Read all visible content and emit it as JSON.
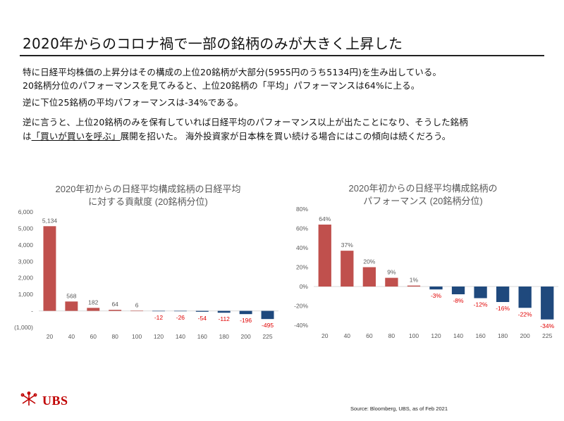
{
  "slide": {
    "title": "2020年からのコロナ禍で一部の銘柄のみが大きく上昇した",
    "lines": [
      {
        "a": "特に日経平均株価の上昇分はその構成の上位20銘柄が大部分(5955円のうち5134円)を生み出している。"
      },
      {
        "a": "20銘柄分位のパフォーマンスを見てみると、上位20銘柄の「平均」パフォーマンスは64%に上る。"
      },
      {
        "a": "逆に下位25銘柄の平均パフォーマンスは-34%である。"
      },
      {
        "a": "逆に言うと、上位20銘柄のみを保有していれば日経平均のパフォーマンス以上が出たことになり、そうした銘柄"
      },
      {
        "a": "は",
        "u": "「買いが買いを呼ぶ」",
        "b": "展開を招いた。 海外投資家が日本株を買い続ける場合にはこの傾向は続くだろう。"
      }
    ],
    "source": "Source: Bloomberg, UBS, as of Feb 2021",
    "logo_text": "UBS",
    "logo_icon": "ubs-keys-icon"
  },
  "colors": {
    "positive": "#c0504d",
    "negative": "#1f497d",
    "neg_label": "#e00000",
    "axis_text": "#595959",
    "grid": "#d9d9d9"
  },
  "chart_data": [
    {
      "type": "bar",
      "title": [
        "2020年初からの日経平均構成銘柄の日経平均",
        "に対する貢献度 (20銘柄分位)"
      ],
      "categories": [
        "20",
        "40",
        "60",
        "80",
        "100",
        "120",
        "140",
        "160",
        "180",
        "200",
        "225"
      ],
      "values": [
        5134,
        568,
        182,
        64,
        6,
        -12,
        -26,
        -54,
        -112,
        -196,
        -495
      ],
      "value_labels": [
        "5,134",
        "568",
        "182",
        "64",
        "6",
        "-12",
        "-26",
        "-54",
        "-112",
        "-196",
        "-495"
      ],
      "ylim": [
        -1000,
        6000
      ],
      "yticks": [
        6000,
        5000,
        4000,
        3000,
        2000,
        1000,
        0,
        -1000
      ],
      "ytick_labels": [
        "6,000",
        "5,000",
        "4,000",
        "3,000",
        "2,000",
        "1,000",
        "-",
        "(1,000)"
      ],
      "xlabel": "",
      "ylabel": "",
      "grid": false,
      "legend": "none"
    },
    {
      "type": "bar",
      "title": [
        "2020年初からの日経平均構成銘柄の",
        "パフォーマンス (20銘柄分位)"
      ],
      "categories": [
        "20",
        "40",
        "60",
        "80",
        "100",
        "120",
        "140",
        "160",
        "180",
        "200",
        "225"
      ],
      "values": [
        64,
        37,
        20,
        9,
        1,
        -3,
        -8,
        -12,
        -16,
        -22,
        -34
      ],
      "value_labels": [
        "64%",
        "37%",
        "20%",
        "9%",
        "1%",
        "-3%",
        "-8%",
        "-12%",
        "-16%",
        "-22%",
        "-34%"
      ],
      "ylim": [
        -40,
        80
      ],
      "yticks": [
        80,
        60,
        40,
        20,
        0,
        -20,
        -40
      ],
      "ytick_labels": [
        "80%",
        "60%",
        "40%",
        "20%",
        "0%",
        "-20%",
        "-40%"
      ],
      "xlabel": "",
      "ylabel": "",
      "grid": false,
      "legend": "none"
    }
  ]
}
